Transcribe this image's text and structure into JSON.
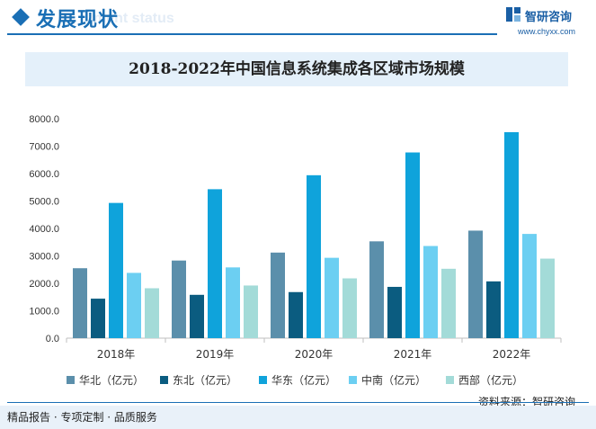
{
  "header": {
    "title": "发展现状",
    "subtitle": "ment status",
    "brand_name": "智研咨询",
    "brand_url": "www.chyxx.com"
  },
  "colors": {
    "accent": "#1a6fb5",
    "title_band": "#e4f0fa"
  },
  "chart_data": {
    "type": "bar",
    "title": "2018-2022年中国信息系统集成各区域市场规模",
    "xlabel": "",
    "ylabel": "",
    "categories": [
      "2018年",
      "2019年",
      "2020年",
      "2021年",
      "2022年"
    ],
    "ylim": [
      0,
      8000
    ],
    "yticks": [
      "0.0",
      "1000.0",
      "2000.0",
      "3000.0",
      "4000.0",
      "5000.0",
      "6000.0",
      "7000.0",
      "8000.0"
    ],
    "grid": false,
    "legend_position": "bottom",
    "series": [
      {
        "name": "华北（亿元）",
        "color": "#5b8fab",
        "values": [
          2550,
          2830,
          3120,
          3530,
          3920
        ]
      },
      {
        "name": "东北（亿元）",
        "color": "#0b5c80",
        "values": [
          1440,
          1580,
          1680,
          1870,
          2070
        ]
      },
      {
        "name": "华东（亿元）",
        "color": "#0fa3db",
        "values": [
          4930,
          5430,
          5940,
          6770,
          7510
        ]
      },
      {
        "name": "中南（亿元）",
        "color": "#6ccff2",
        "values": [
          2380,
          2580,
          2930,
          3360,
          3800
        ]
      },
      {
        "name": "西部（亿元）",
        "color": "#a3dbd8",
        "values": [
          1820,
          1920,
          2180,
          2530,
          2900
        ]
      }
    ]
  },
  "footer": {
    "left_text": "精品报告 · 专项定制 · 品质服务",
    "source": "资料来源：智研咨询"
  }
}
